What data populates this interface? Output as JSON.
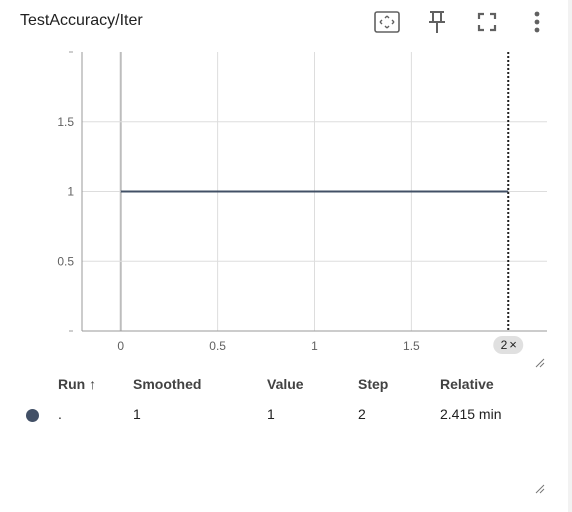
{
  "header": {
    "title": "TestAccuracy/Iter",
    "icons": [
      "fit-domain-icon",
      "pin-icon",
      "fullscreen-icon",
      "more-vert-icon"
    ]
  },
  "chart_data": {
    "type": "line",
    "title": "TestAccuracy/Iter",
    "xlabel": "",
    "ylabel": "",
    "x_ticks": [
      "0",
      "0.5",
      "1",
      "1.5"
    ],
    "y_ticks": [
      "0.5",
      "1",
      "1.5"
    ],
    "xlim": [
      -0.2,
      2.2
    ],
    "ylim": [
      0.0,
      2.0
    ],
    "grid": true,
    "series": [
      {
        "x": [
          0,
          2
        ],
        "y": [
          1,
          1
        ],
        "color": "#425066"
      }
    ],
    "cursor": {
      "x": 2,
      "label": "2",
      "close_symbol": "×"
    }
  },
  "table": {
    "headers": {
      "run": "Run ↑",
      "smoothed": "Smoothed",
      "value": "Value",
      "step": "Step",
      "relative": "Relative"
    },
    "rows": [
      {
        "run": ".",
        "smoothed": "1",
        "value": "1",
        "step": "2",
        "relative": "2.415 min",
        "color": "#425066"
      }
    ]
  },
  "colors": {
    "series": "#425066",
    "grid": "#dddddd",
    "text": "#212121",
    "muted": "#616161"
  }
}
